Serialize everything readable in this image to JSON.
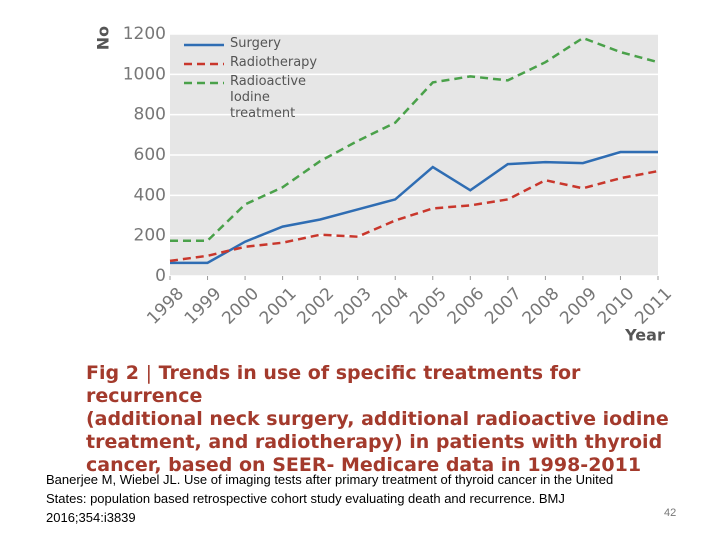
{
  "chart_data": {
    "type": "line",
    "y_label": "No",
    "x_label": "Year",
    "x": [
      1998,
      1999,
      2000,
      2001,
      2002,
      2003,
      2004,
      2005,
      2006,
      2007,
      2008,
      2009,
      2010,
      2011
    ],
    "xlim": [
      1998,
      2011
    ],
    "xticks": [
      1998,
      1999,
      2000,
      2001,
      2002,
      2003,
      2004,
      2005,
      2006,
      2007,
      2008,
      2009,
      2010,
      2011
    ],
    "ylim": [
      0,
      1200
    ],
    "yticks": [
      0,
      200,
      400,
      600,
      800,
      1000,
      1200
    ],
    "grid": true,
    "series": [
      {
        "name": "Surgery",
        "color": "#2f6db3",
        "dash": false,
        "values": [
          65,
          65,
          170,
          245,
          280,
          330,
          380,
          540,
          425,
          555,
          565,
          560,
          615,
          615
        ]
      },
      {
        "name": "Radiotherapy",
        "color": "#c9372c",
        "dash": true,
        "values": [
          75,
          100,
          145,
          165,
          205,
          195,
          275,
          335,
          350,
          380,
          475,
          435,
          485,
          520
        ]
      },
      {
        "name": "Radioactive Iodine treatment",
        "color": "#4aa14a",
        "dash": true,
        "values": [
          175,
          175,
          355,
          440,
          570,
          670,
          760,
          960,
          990,
          970,
          1060,
          1180,
          1110,
          1060
        ]
      }
    ]
  },
  "caption": {
    "label": "Fig 2",
    "separator": "|",
    "lines": [
      "Trends in use of specific treatments for recurrence",
      "(additional neck surgery, additional radioactive iodine",
      "treatment, and radiotherapy) in patients with thyroid",
      "cancer, based on SEER- Medicare data in 1998-2011"
    ]
  },
  "citation": [
    "Banerjee M, Wiebel JL. Use of imaging tests after primary treatment of thyroid cancer in the United",
    "States: population based retrospective cohort study evaluating death and recurrence. BMJ",
    "2016;354:i3839"
  ],
  "page_number": "42"
}
